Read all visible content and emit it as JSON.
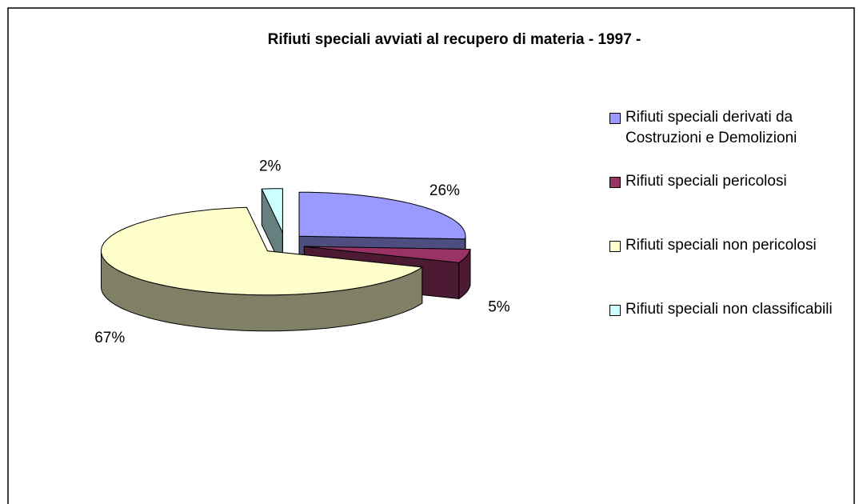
{
  "chart_data": {
    "type": "pie3d",
    "title": "Rifiuti speciali avviati al recupero di materia - 1997 -",
    "categories": [
      "Rifiuti speciali derivati da Costruzioni e Demolizioni",
      "Rifiuti speciali pericolosi",
      "Rifiuti speciali non pericolosi",
      "Rifiuti speciali non classificabili"
    ],
    "values": [
      26,
      5,
      67,
      2
    ],
    "value_labels": [
      "26%",
      "5%",
      "67%",
      "2%"
    ],
    "colors": [
      "#9999ff",
      "#993366",
      "#ffffcc",
      "#ccffff"
    ],
    "legend": "right"
  }
}
